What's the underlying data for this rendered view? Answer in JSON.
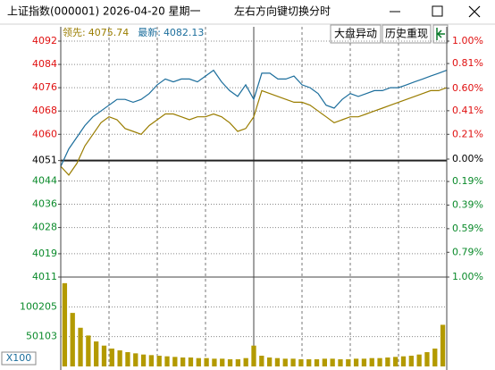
{
  "window": {
    "title": "上证指数(000001) 2026-04-20 星期一",
    "hint": "左右方向键切换分时"
  },
  "toolbar": {
    "buttons": [
      "大盘异动",
      "历史重现"
    ]
  },
  "chart_data": [
    {
      "type": "line",
      "x": [
        0,
        5,
        10,
        15,
        20,
        25,
        30,
        35,
        40,
        45,
        50,
        55,
        60,
        65,
        70,
        75,
        80,
        85,
        90,
        95,
        100,
        105,
        110,
        115,
        120,
        125,
        130,
        135,
        140,
        145,
        150,
        155,
        160,
        165,
        170,
        175,
        180,
        185,
        190,
        195,
        200,
        205,
        210,
        215,
        220,
        225,
        230,
        235,
        240
      ],
      "xlim": [
        0,
        240
      ],
      "series": [
        {
          "name": "领先:",
          "latest": 4075.74,
          "color": "#9a7d00",
          "values": [
            4049,
            4046,
            4050,
            4056,
            4060,
            4064,
            4066,
            4065,
            4062,
            4061,
            4060,
            4063,
            4065,
            4067,
            4067,
            4066,
            4065,
            4066,
            4066,
            4067,
            4066,
            4064,
            4061,
            4062,
            4066,
            4075,
            4074,
            4073,
            4072,
            4071,
            4071,
            4070,
            4068,
            4066,
            4064,
            4065,
            4066,
            4066,
            4067,
            4068,
            4069,
            4070,
            4071,
            4072,
            4073,
            4074,
            4075,
            4075,
            4076
          ]
        },
        {
          "name": "最新:",
          "latest": 4082.13,
          "color": "#1c6e9c",
          "values": [
            4049,
            4055,
            4059,
            4063,
            4066,
            4068,
            4070,
            4072,
            4072,
            4071,
            4072,
            4074,
            4077,
            4079,
            4078,
            4079,
            4079,
            4078,
            4080,
            4082,
            4078,
            4075,
            4073,
            4077,
            4072,
            4081,
            4081,
            4079,
            4079,
            4080,
            4077,
            4076,
            4074,
            4070,
            4069,
            4072,
            4074,
            4073,
            4074,
            4075,
            4075,
            4076,
            4076,
            4077,
            4078,
            4079,
            4080,
            4081,
            4082
          ]
        }
      ],
      "ylim": [
        4011,
        4092
      ],
      "yticks": [
        4092,
        4084,
        4076,
        4068,
        4060,
        4051,
        4044,
        4036,
        4028,
        4019,
        4011
      ],
      "y2lim": [
        -1,
        1
      ],
      "y2ticks": [
        {
          "value": 1.0,
          "label": "1.00%"
        },
        {
          "value": 0.81,
          "label": "0.81%"
        },
        {
          "value": 0.6,
          "label": "0.60%"
        },
        {
          "value": 0.41,
          "label": "0.41%"
        },
        {
          "value": 0.21,
          "label": "0.21%"
        },
        {
          "value": 0.0,
          "label": "0.00%"
        },
        {
          "value": -0.19,
          "label": "0.19%"
        },
        {
          "value": -0.39,
          "label": "0.39%"
        },
        {
          "value": -0.59,
          "label": "0.59%"
        },
        {
          "value": -0.79,
          "label": "0.79%"
        },
        {
          "value": -1.0,
          "label": "1.00%"
        }
      ],
      "grid": true
    },
    {
      "type": "bar",
      "values": [
        140000,
        90000,
        65000,
        52000,
        42000,
        35000,
        30000,
        27000,
        24000,
        22000,
        20000,
        19000,
        18000,
        17000,
        16000,
        15000,
        15000,
        14000,
        14000,
        13000,
        13000,
        12000,
        12000,
        14000,
        35000,
        18000,
        15000,
        14000,
        13000,
        13000,
        12000,
        12000,
        12000,
        13000,
        13000,
        12000,
        12000,
        13000,
        13000,
        14000,
        14000,
        15000,
        16000,
        17000,
        18000,
        20000,
        24000,
        30000,
        70000
      ],
      "color": "#b39a00",
      "ylim": [
        0,
        150308
      ],
      "yticks": [
        50103,
        100205
      ],
      "unit_label": "X100"
    }
  ]
}
